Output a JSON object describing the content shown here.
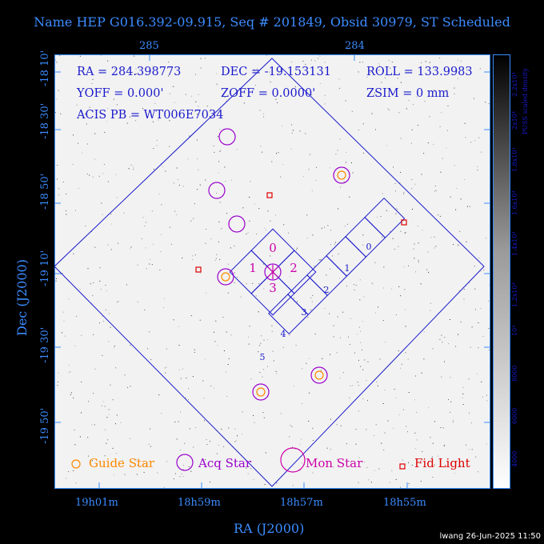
{
  "title": "Name HEP G016.392-09.915, Seq # 201849, Obsid 30979, ST Scheduled",
  "overlay": {
    "ra_line": "RA = 284.398773",
    "dec_line": "DEC = -19.153131",
    "roll_line": "ROLL = 133.9983",
    "yoff_line": "YOFF = 0.000'",
    "zoff_line": "ZOFF = 0.0000'",
    "zsim_line": "ZSIM = 0 mm",
    "acis_line": "ACIS PB = WT006E7034"
  },
  "top_axis": {
    "ticks": [
      "285",
      "284"
    ]
  },
  "x_axis": {
    "label": "RA (J2000)",
    "ticks": [
      "19h01m",
      "18h59m",
      "18h57m",
      "18h55m"
    ]
  },
  "y_axis": {
    "label": "Dec (J2000)",
    "ticks": [
      "-18 10'",
      "-18 30'",
      "-18 50'",
      "-19 10'",
      "-19 30'",
      "-19 50'"
    ]
  },
  "colorbar": {
    "label": "PUSS scaled density",
    "ticks": [
      "4000",
      "6000",
      "8000",
      "10⁴",
      "1.2x10⁴",
      "1.4x10⁴",
      "1.6x10⁴",
      "1.8x10⁴",
      "2x10⁴",
      "2.2x10⁴"
    ]
  },
  "chips_acis_i": [
    "0",
    "1",
    "2",
    "3"
  ],
  "chips_acis_s": [
    "0",
    "1",
    "2",
    "3",
    "4",
    "5"
  ],
  "legend": {
    "guide": "Guide Star",
    "acq": "Acq Star",
    "mon": "Mon Star",
    "fid": "Fid Light"
  },
  "colors": {
    "axis": "#3b8cff",
    "overlay_text": "#1a1acc",
    "guide": "#ff8800",
    "acq": "#9900cc",
    "mon": "#cc00aa",
    "fid": "#dd0000",
    "field": "#1a1acc"
  },
  "footer": "lwang 26-Jun-2025 11:50"
}
